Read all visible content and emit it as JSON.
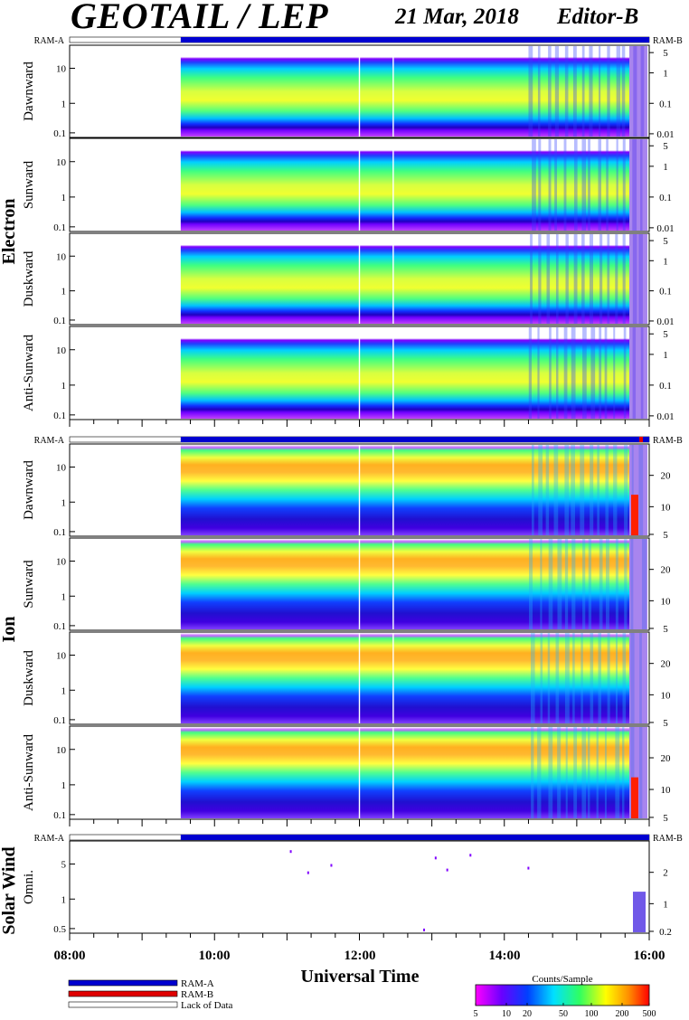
{
  "header": {
    "title": "GEOTAIL / LEP",
    "date": "21 Mar, 2018",
    "editor": "Editor-B"
  },
  "colors": {
    "ram_a": "#0000d0",
    "ram_b": "#e00000",
    "lack_of_data": "#ffffff"
  },
  "groups": [
    {
      "label": "Electron"
    },
    {
      "label": "Ion"
    },
    {
      "label": "Solar Wind"
    }
  ],
  "status_labels": {
    "ram_a": "RAM-A",
    "ram_b": "RAM-B"
  },
  "x_axis": {
    "label": "Universal Time",
    "tick_labels": [
      "08:00",
      "10:00",
      "12:00",
      "14:00",
      "16:00"
    ]
  },
  "legend": {
    "ram_a": "RAM-A",
    "ram_b": "RAM-B",
    "lack": "Lack of Data"
  },
  "colorbar": {
    "title": "Counts/Sample",
    "tick_labels": [
      "5",
      "10",
      "20",
      "50",
      "100",
      "200",
      "500"
    ]
  },
  "chart_data": {
    "type": "heatmap",
    "x_range": [
      "08:00",
      "16:00"
    ],
    "data_start": "09:32",
    "gaps": [
      "12:00",
      "12:28"
    ],
    "panels": [
      {
        "group": "Electron",
        "name": "Dawnward",
        "y_ticks": [
          "10",
          "1",
          "0.1"
        ],
        "right_ticks": [
          "5",
          "1",
          "0.1",
          "0.01"
        ],
        "species": "electron"
      },
      {
        "group": "Electron",
        "name": "Sunward",
        "y_ticks": [
          "10",
          "1",
          "0.1"
        ],
        "right_ticks": [
          "5",
          "1",
          "0.1",
          "0.01"
        ],
        "species": "electron"
      },
      {
        "group": "Electron",
        "name": "Duskward",
        "y_ticks": [
          "10",
          "1",
          "0.1"
        ],
        "right_ticks": [
          "5",
          "1",
          "0.1",
          "0.01"
        ],
        "species": "electron"
      },
      {
        "group": "Electron",
        "name": "Anti-Sunward",
        "y_ticks": [
          "10",
          "1",
          "0.1"
        ],
        "right_ticks": [
          "5",
          "1",
          "0.1",
          "0.01"
        ],
        "species": "electron"
      },
      {
        "group": "Ion",
        "name": "Dawnward",
        "y_ticks": [
          "10",
          "1",
          "0.1"
        ],
        "right_ticks": [
          "20",
          "10",
          "5"
        ],
        "species": "ion"
      },
      {
        "group": "Ion",
        "name": "Sunward",
        "y_ticks": [
          "10",
          "1",
          "0.1"
        ],
        "right_ticks": [
          "20",
          "10",
          "5"
        ],
        "species": "ion"
      },
      {
        "group": "Ion",
        "name": "Duskward",
        "y_ticks": [
          "10",
          "1",
          "0.1"
        ],
        "right_ticks": [
          "20",
          "10",
          "5"
        ],
        "species": "ion"
      },
      {
        "group": "Ion",
        "name": "Anti-Sunward",
        "y_ticks": [
          "10",
          "1",
          "0.1"
        ],
        "right_ticks": [
          "20",
          "10",
          "5"
        ],
        "species": "ion"
      },
      {
        "group": "Solar Wind",
        "name": "Omni.",
        "y_ticks": [
          "5",
          "1",
          "0.5"
        ],
        "right_ticks": [
          "2",
          "1",
          "0.2"
        ],
        "species": "sw"
      }
    ]
  }
}
